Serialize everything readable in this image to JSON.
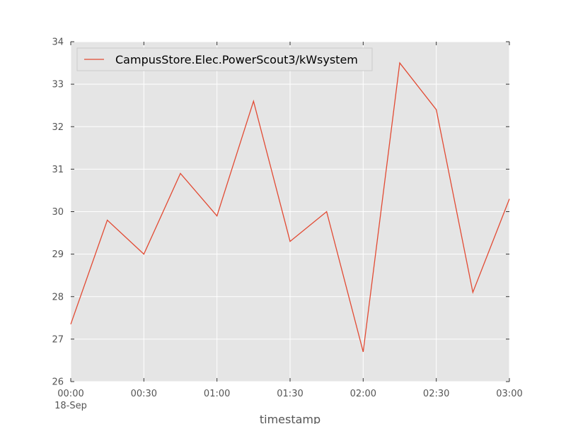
{
  "chart_data": {
    "type": "line",
    "title": "",
    "xlabel": "timestamp",
    "ylabel": "",
    "xlim": [
      "2016-09-18 00:00",
      "2016-09-18 03:00"
    ],
    "ylim": [
      26,
      34
    ],
    "grid": true,
    "legend_position": "top-left",
    "x_ticks": [
      {
        "t": "2016-09-18 00:00",
        "label": "00:00",
        "sublabel": "18-Sep"
      },
      {
        "t": "2016-09-18 00:30",
        "label": "00:30"
      },
      {
        "t": "2016-09-18 01:00",
        "label": "01:00"
      },
      {
        "t": "2016-09-18 01:30",
        "label": "01:30"
      },
      {
        "t": "2016-09-18 02:00",
        "label": "02:00"
      },
      {
        "t": "2016-09-18 02:30",
        "label": "02:30"
      },
      {
        "t": "2016-09-18 03:00",
        "label": "03:00"
      }
    ],
    "y_ticks": [
      26,
      27,
      28,
      29,
      30,
      31,
      32,
      33,
      34
    ],
    "series": [
      {
        "name": "CampusStore.Elec.PowerScout3/kWsystem",
        "color": "#e24a33",
        "x": [
          "2016-09-18 00:00",
          "2016-09-18 00:15",
          "2016-09-18 00:30",
          "2016-09-18 00:45",
          "2016-09-18 01:00",
          "2016-09-18 01:15",
          "2016-09-18 01:30",
          "2016-09-18 01:45",
          "2016-09-18 02:00",
          "2016-09-18 02:15",
          "2016-09-18 02:30",
          "2016-09-18 02:45",
          "2016-09-18 03:00"
        ],
        "y": [
          27.35,
          29.8,
          29.0,
          30.9,
          29.9,
          32.6,
          29.3,
          30.0,
          26.7,
          33.5,
          32.4,
          28.1,
          30.3
        ]
      }
    ]
  },
  "colors": {
    "plot_background": "#e5e5e5",
    "grid": "#ffffff",
    "tick_text": "#555555"
  }
}
